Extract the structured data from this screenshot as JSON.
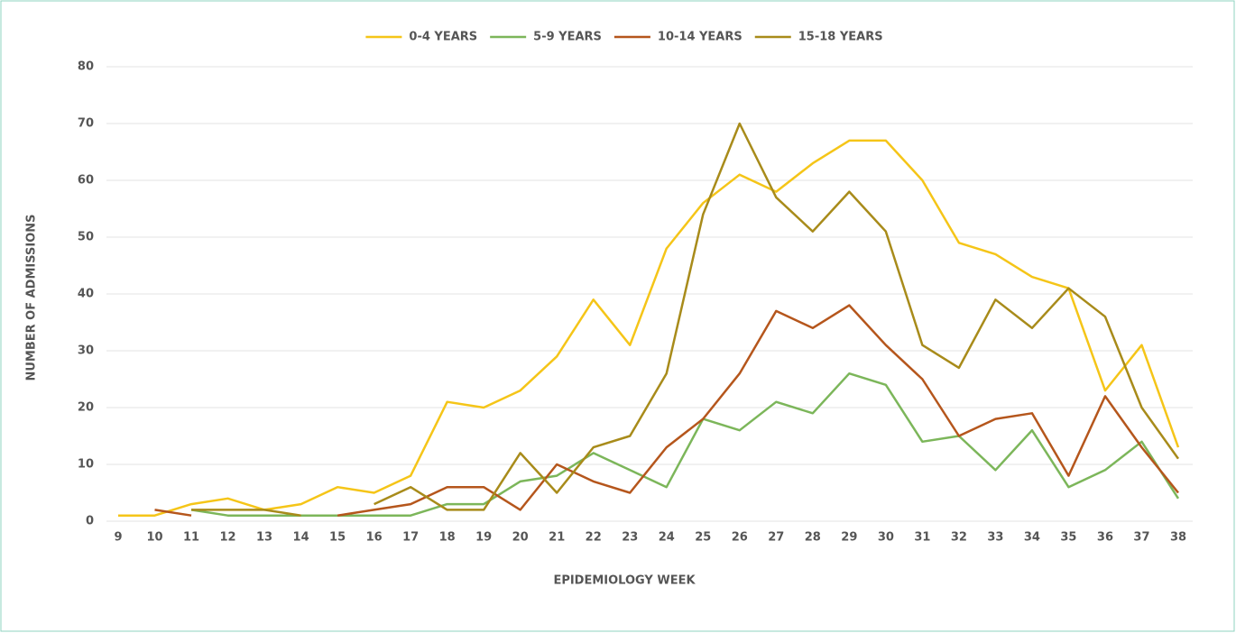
{
  "chart_data": {
    "type": "line",
    "x_label": "EPIDEMIOLOGY WEEK",
    "y_label": "NUMBER OF ADMISSIONS",
    "x": [
      9,
      10,
      11,
      12,
      13,
      14,
      15,
      16,
      17,
      18,
      19,
      20,
      21,
      22,
      23,
      24,
      25,
      26,
      27,
      28,
      29,
      30,
      31,
      32,
      33,
      34,
      35,
      36,
      37,
      38
    ],
    "xlim": [
      9,
      38
    ],
    "xticks": [
      9,
      10,
      11,
      12,
      13,
      14,
      15,
      16,
      17,
      18,
      19,
      20,
      21,
      22,
      23,
      24,
      25,
      26,
      27,
      28,
      29,
      30,
      31,
      32,
      33,
      34,
      35,
      36,
      37,
      38
    ],
    "ylim": [
      0,
      80
    ],
    "yticks": [
      0,
      10,
      20,
      30,
      40,
      50,
      60,
      70,
      80
    ],
    "grid": true,
    "legend": "top",
    "series": [
      {
        "name": "0-4 YEARS",
        "color": "#f5c518",
        "values": [
          1,
          1,
          3,
          4,
          2,
          3,
          6,
          5,
          8,
          21,
          20,
          23,
          29,
          39,
          31,
          48,
          56,
          61,
          58,
          63,
          67,
          67,
          60,
          49,
          47,
          43,
          41,
          23,
          31,
          13
        ]
      },
      {
        "name": "5-9 YEARS",
        "color": "#7cb65a",
        "values": [
          null,
          null,
          2,
          1,
          1,
          1,
          1,
          1,
          1,
          3,
          3,
          7,
          8,
          12,
          9,
          6,
          18,
          16,
          21,
          19,
          26,
          24,
          14,
          15,
          9,
          16,
          6,
          9,
          14,
          4
        ]
      },
      {
        "name": "10-14 YEARS",
        "color": "#b5561c",
        "values": [
          null,
          2,
          1,
          null,
          null,
          null,
          1,
          2,
          3,
          6,
          6,
          2,
          10,
          7,
          5,
          13,
          18,
          26,
          37,
          34,
          38,
          31,
          25,
          15,
          18,
          19,
          8,
          22,
          13,
          5
        ]
      },
      {
        "name": "15-18 YEARS",
        "color": "#a88b1a",
        "values": [
          null,
          null,
          2,
          2,
          2,
          1,
          null,
          3,
          6,
          2,
          2,
          12,
          5,
          13,
          15,
          26,
          54,
          70,
          57,
          51,
          58,
          51,
          31,
          27,
          39,
          34,
          41,
          36,
          20,
          11
        ]
      }
    ]
  }
}
